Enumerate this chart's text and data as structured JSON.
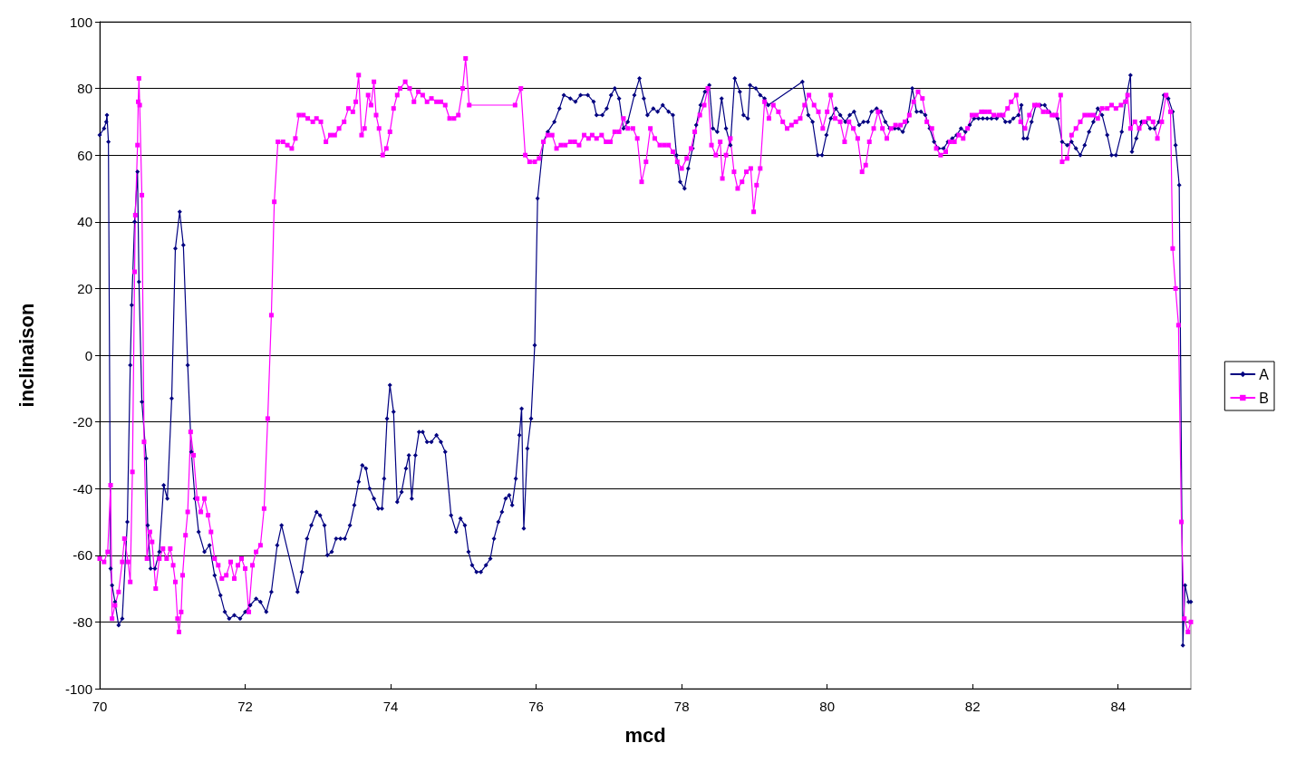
{
  "chart_data": {
    "type": "line",
    "xlabel": "mcd",
    "ylabel": "inclinaison",
    "xlim": [
      70,
      85
    ],
    "xticks": [
      70,
      72,
      74,
      76,
      78,
      80,
      82,
      84
    ],
    "ylim": [
      -100,
      100
    ],
    "yticks": [
      -100,
      -80,
      -60,
      -40,
      -20,
      0,
      20,
      40,
      60,
      80,
      100
    ],
    "grid": "y",
    "legend": "right",
    "line_style": "solid",
    "series": [
      {
        "name": "A",
        "color": "#000080",
        "marker": "diamond",
        "x": [
          70.0,
          70.06,
          70.09,
          70.1,
          70.12,
          70.15,
          70.17,
          70.21,
          70.26,
          70.31,
          70.38,
          70.42,
          70.44,
          70.48,
          70.52,
          70.54,
          70.58,
          70.64,
          70.66,
          70.7,
          70.76,
          70.82,
          70.88,
          70.93,
          70.99,
          71.04,
          71.1,
          71.15,
          71.21,
          71.26,
          71.31,
          71.36,
          71.44,
          71.51,
          71.58,
          71.66,
          71.72,
          71.78,
          71.85,
          71.93,
          72.0,
          72.07,
          72.15,
          72.21,
          72.29,
          72.36,
          72.44,
          72.5,
          72.72,
          72.78,
          72.85,
          72.91,
          72.98,
          73.03,
          73.09,
          73.13,
          73.19,
          73.25,
          73.31,
          73.37,
          73.44,
          73.5,
          73.56,
          73.61,
          73.66,
          73.71,
          73.77,
          73.83,
          73.88,
          73.91,
          73.95,
          73.99,
          74.04,
          74.09,
          74.15,
          74.21,
          74.25,
          74.29,
          74.34,
          74.39,
          74.44,
          74.5,
          74.56,
          74.63,
          74.69,
          74.75,
          74.83,
          74.9,
          74.96,
          75.02,
          75.07,
          75.12,
          75.18,
          75.24,
          75.31,
          75.37,
          75.42,
          75.48,
          75.53,
          75.58,
          75.63,
          75.67,
          75.72,
          75.77,
          75.8,
          75.83,
          75.88,
          75.93,
          75.98,
          76.02,
          76.1,
          76.16,
          76.25,
          76.32,
          76.38,
          76.47,
          76.54,
          76.61,
          76.71,
          76.79,
          76.83,
          76.91,
          76.97,
          77.03,
          77.08,
          77.14,
          77.2,
          77.26,
          77.35,
          77.42,
          77.48,
          77.53,
          77.61,
          77.67,
          77.74,
          77.82,
          77.88,
          77.93,
          77.98,
          78.04,
          78.09,
          78.15,
          78.2,
          78.26,
          78.32,
          78.38,
          78.43,
          78.49,
          78.55,
          78.61,
          78.67,
          78.73,
          78.8,
          78.85,
          78.91,
          78.94,
          79.02,
          79.08,
          79.14,
          79.19,
          79.66,
          79.74,
          79.8,
          79.87,
          79.93,
          79.99,
          80.05,
          80.12,
          80.18,
          80.25,
          80.31,
          80.37,
          80.44,
          80.5,
          80.56,
          80.61,
          80.68,
          80.74,
          80.8,
          80.86,
          80.93,
          80.98,
          81.04,
          81.1,
          81.17,
          81.23,
          81.29,
          81.35,
          81.41,
          81.47,
          81.53,
          81.6,
          81.66,
          81.72,
          81.78,
          81.84,
          81.9,
          81.96,
          82.02,
          82.08,
          82.14,
          82.2,
          82.26,
          82.33,
          82.39,
          82.45,
          82.51,
          82.56,
          82.63,
          82.67,
          82.7,
          82.75,
          82.81,
          82.87,
          82.93,
          82.99,
          83.05,
          83.11,
          83.17,
          83.23,
          83.3,
          83.36,
          83.42,
          83.48,
          83.54,
          83.6,
          83.66,
          83.72,
          83.78,
          83.85,
          83.91,
          83.97,
          84.05,
          84.1,
          84.17,
          84.19,
          84.25,
          84.32,
          84.38,
          84.44,
          84.5,
          84.56,
          84.63,
          84.69,
          84.75,
          84.79,
          84.84,
          84.89,
          84.92,
          84.97,
          85.0
        ],
        "values": [
          66,
          68,
          70,
          72,
          64,
          -64,
          -69,
          -74,
          -81,
          -79,
          -50,
          -3,
          15,
          40,
          55,
          22,
          -14,
          -31,
          -51,
          -64,
          -64,
          -59,
          -39,
          -43,
          -13,
          32,
          43,
          33,
          -3,
          -29,
          -43,
          -53,
          -59,
          -57,
          -66,
          -72,
          -77,
          -79,
          -78,
          -79,
          -77,
          -75,
          -73,
          -74,
          -77,
          -71,
          -57,
          -51,
          -71,
          -65,
          -55,
          -51,
          -47,
          -48,
          -51,
          -60,
          -59,
          -55,
          -55,
          -55,
          -51,
          -45,
          -38,
          -33,
          -34,
          -40,
          -43,
          -46,
          -46,
          -37,
          -19,
          -9,
          -17,
          -44,
          -41,
          -34,
          -30,
          -43,
          -30,
          -23,
          -23,
          -26,
          -26,
          -24,
          -26,
          -29,
          -48,
          -53,
          -49,
          -51,
          -59,
          -63,
          -65,
          -65,
          -63,
          -61,
          -55,
          -50,
          -47,
          -43,
          -42,
          -45,
          -37,
          -24,
          -16,
          -52,
          -28,
          -19,
          3,
          47,
          64,
          67,
          70,
          74,
          78,
          77,
          76,
          78,
          78,
          76,
          72,
          72,
          74,
          78,
          80,
          77,
          68,
          70,
          78,
          83,
          77,
          72,
          74,
          73,
          75,
          73,
          72,
          60,
          52,
          50,
          56,
          62,
          69,
          75,
          79,
          81,
          68,
          67,
          77,
          68,
          63,
          83,
          79,
          72,
          71,
          81,
          80,
          78,
          77,
          75,
          82,
          72,
          70,
          60,
          60,
          66,
          71,
          74,
          72,
          70,
          72,
          73,
          69,
          70,
          70,
          73,
          74,
          73,
          70,
          68,
          68,
          68,
          67,
          70,
          80,
          73,
          73,
          72,
          68,
          64,
          62,
          62,
          64,
          65,
          66,
          68,
          67,
          69,
          71,
          71,
          71,
          71,
          71,
          71,
          72,
          70,
          70,
          71,
          72,
          75,
          65,
          65,
          70,
          75,
          75,
          75,
          73,
          72,
          71,
          64,
          63,
          64,
          62,
          60,
          63,
          67,
          70,
          74,
          72,
          66,
          60,
          60,
          67,
          76,
          84,
          61,
          65,
          70,
          70,
          68,
          68,
          70,
          78,
          77,
          73,
          63,
          51,
          -87,
          -69,
          -74,
          -74
        ]
      },
      {
        "name": "B",
        "color": "#ff00ff",
        "marker": "square",
        "x": [
          70.0,
          70.06,
          70.11,
          70.15,
          70.17,
          70.21,
          70.26,
          70.31,
          70.34,
          70.39,
          70.42,
          70.45,
          70.48,
          70.49,
          70.52,
          70.53,
          70.54,
          70.55,
          70.58,
          70.61,
          70.65,
          70.69,
          70.72,
          70.77,
          70.82,
          70.87,
          70.92,
          70.97,
          71.01,
          71.04,
          71.07,
          71.09,
          71.12,
          71.14,
          71.18,
          71.21,
          71.25,
          71.29,
          71.34,
          71.39,
          71.44,
          71.49,
          71.53,
          71.58,
          71.63,
          71.68,
          71.74,
          71.8,
          71.85,
          71.9,
          71.95,
          72.0,
          72.05,
          72.1,
          72.15,
          72.21,
          72.26,
          72.31,
          72.36,
          72.4,
          72.45,
          72.52,
          72.58,
          72.64,
          72.69,
          72.74,
          72.8,
          72.86,
          72.93,
          72.98,
          73.04,
          73.11,
          73.17,
          73.23,
          73.29,
          73.36,
          73.42,
          73.48,
          73.52,
          73.56,
          73.6,
          73.64,
          73.69,
          73.73,
          73.77,
          73.8,
          73.84,
          73.89,
          73.94,
          73.99,
          74.04,
          74.09,
          74.13,
          74.2,
          74.26,
          74.32,
          74.38,
          74.44,
          74.5,
          74.56,
          74.63,
          74.69,
          74.75,
          74.81,
          74.87,
          74.93,
          74.99,
          75.03,
          75.08,
          75.71,
          75.79,
          75.85,
          75.91,
          75.98,
          76.04,
          76.1,
          76.16,
          76.22,
          76.28,
          76.34,
          76.4,
          76.47,
          76.53,
          76.59,
          76.66,
          76.72,
          76.77,
          76.83,
          76.9,
          76.96,
          77.02,
          77.08,
          77.14,
          77.2,
          77.26,
          77.33,
          77.39,
          77.45,
          77.51,
          77.57,
          77.63,
          77.7,
          77.76,
          77.82,
          77.88,
          77.94,
          78.0,
          78.07,
          78.13,
          78.18,
          78.25,
          78.31,
          78.36,
          78.41,
          78.47,
          78.53,
          78.56,
          78.61,
          78.67,
          78.72,
          78.77,
          78.83,
          78.89,
          78.95,
          78.99,
          79.03,
          79.08,
          79.14,
          79.2,
          79.26,
          79.33,
          79.39,
          79.45,
          79.51,
          79.57,
          79.63,
          79.69,
          79.75,
          79.82,
          79.88,
          79.94,
          80.0,
          80.05,
          80.11,
          80.18,
          80.24,
          80.3,
          80.36,
          80.42,
          80.48,
          80.53,
          80.58,
          80.64,
          80.7,
          80.76,
          80.82,
          80.88,
          80.94,
          81.01,
          81.07,
          81.13,
          81.19,
          81.25,
          81.31,
          81.37,
          81.44,
          81.5,
          81.56,
          81.63,
          81.69,
          81.75,
          81.81,
          81.87,
          81.93,
          81.99,
          82.05,
          82.12,
          82.17,
          82.23,
          82.29,
          82.36,
          82.42,
          82.48,
          82.53,
          82.6,
          82.66,
          82.72,
          82.78,
          82.85,
          82.9,
          82.97,
          83.03,
          83.09,
          83.15,
          83.21,
          83.23,
          83.3,
          83.36,
          83.42,
          83.48,
          83.54,
          83.6,
          83.66,
          83.72,
          83.78,
          83.85,
          83.91,
          83.97,
          84.04,
          84.1,
          84.13,
          84.17,
          84.23,
          84.29,
          84.36,
          84.42,
          84.48,
          84.54,
          84.6,
          84.66,
          84.72,
          84.75,
          84.79,
          84.83,
          84.87,
          84.91,
          84.96,
          85.0
        ],
        "values": [
          -61,
          -62,
          -59,
          -39,
          -79,
          -75,
          -71,
          -62,
          -55,
          -62,
          -68,
          -35,
          25,
          42,
          63,
          76,
          83,
          75,
          48,
          -26,
          -61,
          -53,
          -56,
          -70,
          -61,
          -58,
          -61,
          -58,
          -63,
          -68,
          -79,
          -83,
          -77,
          -66,
          -54,
          -47,
          -23,
          -30,
          -43,
          -47,
          -43,
          -48,
          -53,
          -61,
          -63,
          -67,
          -66,
          -62,
          -67,
          -63,
          -61,
          -64,
          -77,
          -63,
          -59,
          -57,
          -46,
          -19,
          12,
          46,
          64,
          64,
          63,
          62,
          65,
          72,
          72,
          71,
          70,
          71,
          70,
          64,
          66,
          66,
          68,
          70,
          74,
          73,
          76,
          84,
          66,
          68,
          78,
          75,
          82,
          72,
          68,
          60,
          62,
          67,
          74,
          78,
          80,
          82,
          80,
          76,
          79,
          78,
          76,
          77,
          76,
          76,
          75,
          71,
          71,
          72,
          80,
          89,
          75,
          75,
          80,
          60,
          58,
          58,
          59,
          64,
          66,
          66,
          62,
          63,
          63,
          64,
          64,
          63,
          66,
          65,
          66,
          65,
          66,
          64,
          64,
          67,
          67,
          71,
          68,
          68,
          65,
          52,
          58,
          68,
          65,
          63,
          63,
          63,
          61,
          58,
          56,
          59,
          62,
          67,
          72,
          75,
          80,
          63,
          60,
          64,
          53,
          60,
          65,
          55,
          50,
          52,
          55,
          56,
          43,
          51,
          56,
          76,
          71,
          75,
          73,
          70,
          68,
          69,
          70,
          71,
          75,
          78,
          75,
          73,
          68,
          73,
          78,
          71,
          70,
          64,
          70,
          68,
          65,
          55,
          57,
          64,
          68,
          73,
          68,
          65,
          68,
          69,
          69,
          70,
          72,
          76,
          79,
          77,
          70,
          68,
          62,
          60,
          61,
          64,
          64,
          66,
          65,
          68,
          72,
          72,
          73,
          73,
          73,
          72,
          72,
          72,
          74,
          76,
          78,
          70,
          68,
          72,
          75,
          75,
          73,
          73,
          72,
          72,
          78,
          58,
          59,
          66,
          68,
          70,
          72,
          72,
          72,
          71,
          74,
          74,
          75,
          74,
          75,
          76,
          78,
          68,
          70,
          68,
          70,
          71,
          70,
          65,
          70,
          78,
          73,
          32,
          20,
          9,
          -50,
          -79,
          -83,
          -80
        ]
      }
    ]
  }
}
